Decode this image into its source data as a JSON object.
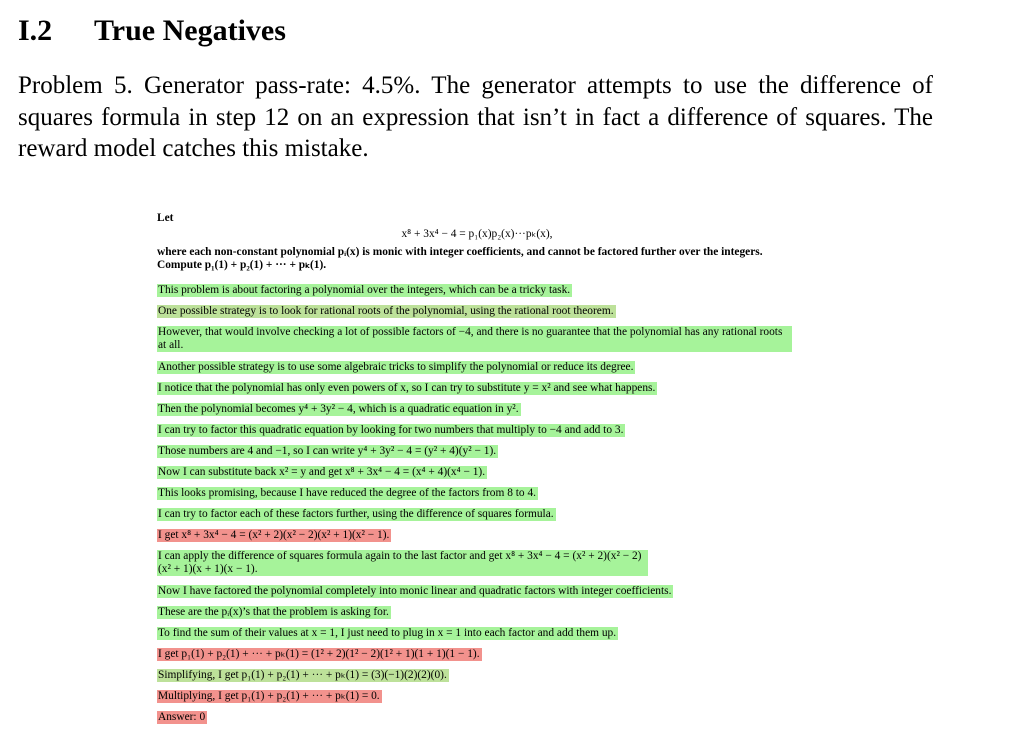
{
  "section": {
    "number": "I.2",
    "title": "True Negatives"
  },
  "intro": "Problem 5. Generator pass-rate: 4.5%. The generator attempts to use the difference of squares formula in step 12 on an expression that isn’t in fact a difference of squares. The reward model catches this mistake.",
  "problem": {
    "let": "Let",
    "equation": "x⁸ + 3x⁴ − 4 = p₁(x)p₂(x)···pₖ(x),",
    "statement": "where each non-constant polynomial pᵢ(x) is monic with integer coefficients, and cannot be factored further over the integers. Compute p₁(1) + p₂(1) + ··· + pₖ(1)."
  },
  "steps": [
    {
      "text": "This problem is about factoring a polynomial over the integers, which can be a tricky task.",
      "color": "green"
    },
    {
      "text": "One possible strategy is to look for rational roots of the polynomial, using the rational root theorem.",
      "color": "olive"
    },
    {
      "text": "However, that would involve checking a lot of possible factors of −4, and there is no guarantee that the polynomial has any rational roots at all.",
      "color": "green"
    },
    {
      "text": "Another possible strategy is to use some algebraic tricks to simplify the polynomial or reduce its degree.",
      "color": "green"
    },
    {
      "text": "I notice that the polynomial has only even powers of x, so I can try to substitute y = x² and see what happens.",
      "color": "green"
    },
    {
      "text": "Then the polynomial becomes y⁴ + 3y² − 4, which is a quadratic equation in y².",
      "color": "green"
    },
    {
      "text": "I can try to factor this quadratic equation by looking for two numbers that multiply to −4 and add to 3.",
      "color": "green"
    },
    {
      "text": "Those numbers are 4 and −1, so I can write y⁴ + 3y² − 4 = (y² + 4)(y² − 1).",
      "color": "green"
    },
    {
      "text": "Now I can substitute back x² = y and get x⁸ + 3x⁴ − 4 = (x⁴ + 4)(x⁴ − 1).",
      "color": "green"
    },
    {
      "text": "This looks promising, because I have reduced the degree of the factors from 8 to 4.",
      "color": "green"
    },
    {
      "text": "I can try to factor each of these factors further, using the difference of squares formula.",
      "color": "green"
    },
    {
      "text": "I get x⁸ + 3x⁴ − 4 = (x² + 2)(x² − 2)(x² + 1)(x² − 1).",
      "color": "red"
    },
    {
      "text": "I can apply the difference of squares formula again to the last factor and get x⁸ + 3x⁴ − 4 = (x² + 2)(x² − 2)(x² + 1)(x + 1)(x − 1).",
      "color": "green"
    },
    {
      "text": "Now I have factored the polynomial completely into monic linear and quadratic factors with integer coefficients.",
      "color": "green"
    },
    {
      "text": "These are the pᵢ(x)’s that the problem is asking for.",
      "color": "green"
    },
    {
      "text": "To find the sum of their values at x = 1, I just need to plug in x = 1 into each factor and add them up.",
      "color": "green"
    },
    {
      "text": "I get p₁(1) + p₂(1) + ··· + pₖ(1) = (1² + 2)(1² − 2)(1² + 1)(1 + 1)(1 − 1).",
      "color": "red"
    },
    {
      "text": "Simplifying, I get p₁(1) + p₂(1) + ··· + pₖ(1) = (3)(−1)(2)(2)(0).",
      "color": "olive"
    },
    {
      "text": "Multiplying, I get p₁(1) + p₂(1) + ··· + pₖ(1) = 0.",
      "color": "red"
    },
    {
      "text": "Answer: 0",
      "color": "red"
    }
  ],
  "colors": {
    "green": "#a6f39a",
    "olive": "#bde19a",
    "red": "#f2928d"
  }
}
